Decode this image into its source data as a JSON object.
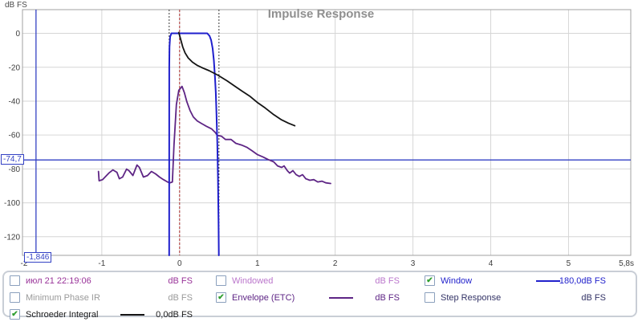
{
  "title": "Impulse Response",
  "y_axis_corner_label": "dB FS",
  "colors": {
    "window_blue": "#1f1fcc",
    "schroeder_black": "#141414",
    "envelope_purple": "#5e2585",
    "marker_blue": "#3341c4",
    "reference_red": "#b03030",
    "window_edge_dotted": "#3a3a3a",
    "grid": "#d6d6d6",
    "plot_border": "#a0a0a0",
    "tick_text": "#3c3c3c",
    "title_gray": "#8f8f8f"
  },
  "markers": {
    "level_label": "-74,7",
    "level_value": -74.7,
    "time_label": "-1,846",
    "time_value": -1.846
  },
  "chart_data": {
    "type": "line",
    "title": "Impulse Response",
    "xlabel": "",
    "ylabel": "dB FS",
    "xlim": [
      -2.02,
      5.8
    ],
    "ylim": [
      -131,
      14
    ],
    "grid": true,
    "x_ticks": [
      {
        "v": -2,
        "l": "-2"
      },
      {
        "v": -1,
        "l": "-1"
      },
      {
        "v": 0,
        "l": "0"
      },
      {
        "v": 1,
        "l": "1"
      },
      {
        "v": 2,
        "l": "2"
      },
      {
        "v": 3,
        "l": "3"
      },
      {
        "v": 4,
        "l": "4"
      },
      {
        "v": 5,
        "l": "5"
      },
      {
        "v": 5.8,
        "l": "5,8s",
        "edge": true
      }
    ],
    "y_ticks": [
      {
        "v": 0,
        "l": "0"
      },
      {
        "v": -20,
        "l": "-20"
      },
      {
        "v": -40,
        "l": "-40"
      },
      {
        "v": -60,
        "l": "-60"
      },
      {
        "v": -80,
        "l": "-80"
      },
      {
        "v": -100,
        "l": "-100"
      },
      {
        "v": -120,
        "l": "-120"
      }
    ],
    "reference_lines": {
      "time_zero": 0,
      "window_left": -0.134,
      "window_right": 0.506
    },
    "series": [
      {
        "name": "Envelope (ETC)",
        "color": "#5e2585",
        "width": 1.8,
        "points": [
          [
            -1.043,
            -81.5
          ],
          [
            -1.035,
            -87
          ],
          [
            -0.99,
            -86.3
          ],
          [
            -0.91,
            -82.5
          ],
          [
            -0.857,
            -80.6
          ],
          [
            -0.806,
            -82
          ],
          [
            -0.775,
            -85.8
          ],
          [
            -0.733,
            -84.8
          ],
          [
            -0.682,
            -80.1
          ],
          [
            -0.651,
            -81
          ],
          [
            -0.6,
            -83.9
          ],
          [
            -0.548,
            -77.7
          ],
          [
            -0.517,
            -79.1
          ],
          [
            -0.465,
            -84.8
          ],
          [
            -0.413,
            -83.9
          ],
          [
            -0.362,
            -81.5
          ],
          [
            -0.31,
            -82.9
          ],
          [
            -0.258,
            -84.8
          ],
          [
            -0.207,
            -86.3
          ],
          [
            -0.155,
            -87.7
          ],
          [
            -0.124,
            -88.2
          ],
          [
            -0.093,
            -87.7
          ],
          [
            -0.072,
            -66
          ],
          [
            -0.041,
            -42
          ],
          [
            -0.01,
            -33.6
          ],
          [
            0.031,
            -31.3
          ],
          [
            0.062,
            -35.1
          ],
          [
            0.093,
            -40.3
          ],
          [
            0.134,
            -45.5
          ],
          [
            0.176,
            -49.3
          ],
          [
            0.227,
            -51.7
          ],
          [
            0.279,
            -53.1
          ],
          [
            0.351,
            -55
          ],
          [
            0.413,
            -56.4
          ],
          [
            0.455,
            -58.3
          ],
          [
            0.486,
            -60.2
          ],
          [
            0.537,
            -60.7
          ],
          [
            0.589,
            -62.6
          ],
          [
            0.661,
            -62.6
          ],
          [
            0.723,
            -64.9
          ],
          [
            0.795,
            -65.9
          ],
          [
            0.868,
            -67.3
          ],
          [
            0.93,
            -69.2
          ],
          [
            1.002,
            -71.6
          ],
          [
            1.074,
            -73
          ],
          [
            1.136,
            -74.4
          ],
          [
            1.209,
            -75.8
          ],
          [
            1.26,
            -78.2
          ],
          [
            1.312,
            -79.1
          ],
          [
            1.343,
            -78.2
          ],
          [
            1.384,
            -81
          ],
          [
            1.415,
            -82.5
          ],
          [
            1.457,
            -81
          ],
          [
            1.498,
            -83.4
          ],
          [
            1.539,
            -84.4
          ],
          [
            1.581,
            -83.4
          ],
          [
            1.622,
            -85.8
          ],
          [
            1.674,
            -86.7
          ],
          [
            1.725,
            -86.3
          ],
          [
            1.777,
            -87.7
          ],
          [
            1.829,
            -87.2
          ],
          [
            1.88,
            -88.2
          ],
          [
            1.942,
            -88.6
          ]
        ]
      },
      {
        "name": "Window",
        "color": "#1f1fcc",
        "width": 2,
        "points": [
          [
            -0.134,
            -131
          ],
          [
            -0.133,
            -20
          ],
          [
            -0.13,
            -8
          ],
          [
            -0.122,
            -2
          ],
          [
            -0.105,
            0
          ],
          [
            0.355,
            0
          ],
          [
            0.385,
            -1.5
          ],
          [
            0.405,
            -4
          ],
          [
            0.425,
            -9
          ],
          [
            0.44,
            -16
          ],
          [
            0.455,
            -26
          ],
          [
            0.465,
            -35
          ],
          [
            0.475,
            -48
          ],
          [
            0.485,
            -65
          ],
          [
            0.493,
            -85
          ],
          [
            0.5,
            -110
          ],
          [
            0.504,
            -131
          ]
        ]
      },
      {
        "name": "Schroeder Integral",
        "color": "#141414",
        "width": 1.8,
        "points": [
          [
            -0.01,
            0.5
          ],
          [
            0.02,
            -4.5
          ],
          [
            0.04,
            -8
          ],
          [
            0.07,
            -11.5
          ],
          [
            0.11,
            -14.5
          ],
          [
            0.165,
            -17
          ],
          [
            0.23,
            -19
          ],
          [
            0.3,
            -20.5
          ],
          [
            0.38,
            -22
          ],
          [
            0.49,
            -24.6
          ],
          [
            0.61,
            -28
          ],
          [
            0.72,
            -31.5
          ],
          [
            0.8,
            -34
          ],
          [
            0.9,
            -37
          ],
          [
            1.0,
            -40.8
          ],
          [
            1.1,
            -44
          ],
          [
            1.21,
            -48
          ],
          [
            1.31,
            -51
          ],
          [
            1.4,
            -53
          ],
          [
            1.48,
            -54.5
          ]
        ]
      }
    ]
  },
  "legend": {
    "items": [
      {
        "row": 0,
        "col": 0,
        "checked": false,
        "label": "июл 21 22:19:06",
        "label_color": "#993399",
        "value": "dB FS",
        "value_color": "#993399",
        "line_color": null
      },
      {
        "row": 0,
        "col": 1,
        "checked": false,
        "label": "Windowed",
        "label_color": "#bb77cc",
        "value": "dB FS",
        "value_color": "#bb77cc",
        "line_color": null
      },
      {
        "row": 0,
        "col": 2,
        "checked": true,
        "label": "Window",
        "label_color": "#2222cc",
        "value": "-180,0dB FS",
        "value_color": "#2222cc",
        "line_color": "#2222cc"
      },
      {
        "row": 1,
        "col": 0,
        "checked": false,
        "label": "Minimum Phase IR",
        "label_color": "#9a9a9a",
        "value": "dB FS",
        "value_color": "#9a9a9a",
        "line_color": null
      },
      {
        "row": 1,
        "col": 1,
        "checked": true,
        "label": "Envelope (ETC)",
        "label_color": "#5e2585",
        "value": "dB FS",
        "value_color": "#5e2585",
        "line_color": "#5e2585"
      },
      {
        "row": 1,
        "col": 2,
        "checked": false,
        "label": "Step Response",
        "label_color": "#333366",
        "value": "dB FS",
        "value_color": "#333366",
        "line_color": null
      },
      {
        "row": 2,
        "col": 0,
        "checked": true,
        "label": "Schroeder Integral",
        "label_color": "#1a1a1a",
        "value": "0,0dB FS",
        "value_color": "#1a1a1a",
        "line_color": "#141414"
      }
    ],
    "check_glyph": "✔"
  }
}
